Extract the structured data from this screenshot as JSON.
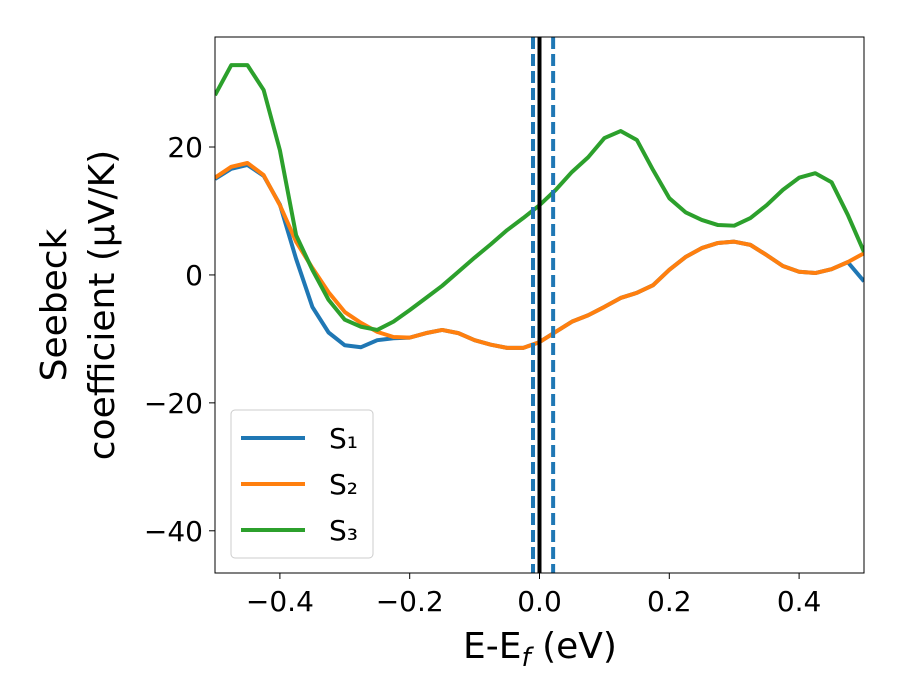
{
  "chart_data": {
    "type": "line",
    "x_label": [
      "E-E",
      "f",
      " (eV)"
    ],
    "y_label": [
      "Seebeck",
      "coefficient  (μV/K)"
    ],
    "x": [
      -0.5,
      -0.475,
      -0.45,
      -0.425,
      -0.4,
      -0.375,
      -0.35,
      -0.325,
      -0.3,
      -0.275,
      -0.25,
      -0.225,
      -0.2,
      -0.175,
      -0.15,
      -0.125,
      -0.1,
      -0.075,
      -0.05,
      -0.025,
      0,
      0.025,
      0.05,
      0.075,
      0.1,
      0.125,
      0.15,
      0.175,
      0.2,
      0.225,
      0.25,
      0.275,
      0.3,
      0.325,
      0.35,
      0.375,
      0.4,
      0.425,
      0.45,
      0.475,
      0.5
    ],
    "series": [
      {
        "name": "S₁",
        "color": "#1f77b4",
        "values": [
          15,
          16.6,
          17.2,
          15.5,
          11,
          2.5,
          -5,
          -9,
          -11,
          -11.3,
          -10.2,
          -9.9,
          -9.8,
          -9.1,
          -8.6,
          -9.1,
          -10.2,
          -10.9,
          -11.4,
          -11.4,
          -10.5,
          -8.9,
          -7.3,
          -6.3,
          -5,
          -3.6,
          -2.8,
          -1.6,
          0.8,
          2.8,
          4.2,
          5,
          5.2,
          4.7,
          3.1,
          1.4,
          0.5,
          0.3,
          0.9,
          2,
          -1
        ]
      },
      {
        "name": "S₂",
        "color": "#ff7f0e",
        "values": [
          15.2,
          16.9,
          17.5,
          15.6,
          10.9,
          5.2,
          1.1,
          -2.7,
          -5.8,
          -7.5,
          -8.9,
          -9.7,
          -9.8,
          -9.1,
          -8.6,
          -9.1,
          -10.2,
          -10.9,
          -11.4,
          -11.4,
          -10.5,
          -8.9,
          -7.3,
          -6.3,
          -5,
          -3.6,
          -2.8,
          -1.6,
          0.8,
          2.8,
          4.2,
          5,
          5.2,
          4.7,
          3.1,
          1.4,
          0.5,
          0.3,
          0.9,
          2,
          3.4
        ]
      },
      {
        "name": "S₃",
        "color": "#2ca02c",
        "values": [
          28.1,
          32.8,
          32.8,
          28.9,
          19.5,
          6.2,
          0.8,
          -3.9,
          -7,
          -8.1,
          -8.6,
          -7.3,
          -5.5,
          -3.6,
          -1.7,
          0.5,
          2.7,
          4.8,
          7,
          8.9,
          10.9,
          13.3,
          16.1,
          18.4,
          21.4,
          22.5,
          21.1,
          16.4,
          12,
          9.8,
          8.6,
          7.8,
          7.7,
          8.9,
          10.9,
          13.3,
          15.2,
          15.9,
          14.5,
          9.4,
          3.6
        ]
      }
    ],
    "vlines": [
      {
        "x": -0.01,
        "color": "#1f77b4",
        "dashed": true
      },
      {
        "x": 0.021,
        "color": "#1f77b4",
        "dashed": true
      },
      {
        "x": 0,
        "color": "#000000",
        "dashed": false
      }
    ],
    "xlim": [
      -0.5,
      0.5
    ],
    "xticks": [
      {
        "value": -0.4,
        "label": "−0.4"
      },
      {
        "value": -0.2,
        "label": "−0.2"
      },
      {
        "value": 0,
        "label": "0.0"
      },
      0.2,
      0.4
    ],
    "ylim": [
      -46.6,
      37.2
    ],
    "yticks": [
      {
        "value": -40,
        "label": "−40"
      },
      {
        "value": -20,
        "label": "−20"
      },
      0,
      20
    ],
    "grid": false,
    "legend": "lower left"
  }
}
